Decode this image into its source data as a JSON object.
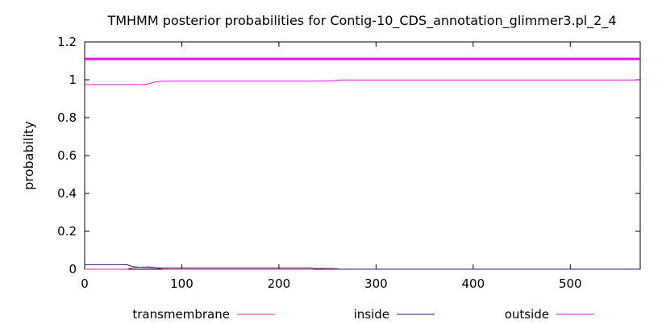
{
  "chart_data": {
    "type": "line",
    "title": "TMHMM posterior probabilities for Contig-10_CDS_annotation_glimmer3.pl_2_4",
    "xlabel": "",
    "ylabel": "probability",
    "xlim": [
      0,
      572
    ],
    "ylim": [
      0,
      1.2
    ],
    "x_ticks": [
      0,
      100,
      200,
      300,
      400,
      500
    ],
    "y_ticks": [
      0,
      0.2,
      0.4,
      0.6,
      0.8,
      1,
      1.2
    ],
    "y_tick_labels": [
      "0",
      "0.2",
      "0.4",
      "0.6",
      "0.8",
      "1",
      "1.2"
    ],
    "grid": false,
    "legend_position": "bottom",
    "series": [
      {
        "name": "transmembrane",
        "color": "#e0306a",
        "points": [
          [
            0,
            0.0
          ],
          [
            44,
            0.0
          ],
          [
            46,
            0.004
          ],
          [
            50,
            0.008
          ],
          [
            55,
            0.01
          ],
          [
            60,
            0.011
          ],
          [
            66,
            0.012
          ],
          [
            72,
            0.009
          ],
          [
            76,
            0.004
          ],
          [
            80,
            0.001
          ],
          [
            90,
            0.0
          ],
          [
            234,
            0.0
          ],
          [
            238,
            0.003
          ],
          [
            245,
            0.005
          ],
          [
            252,
            0.005
          ],
          [
            258,
            0.003
          ],
          [
            263,
            0.0
          ],
          [
            572,
            0.0
          ]
        ]
      },
      {
        "name": "inside",
        "color": "#1f1f8f",
        "points": [
          [
            0,
            0.024
          ],
          [
            40,
            0.024
          ],
          [
            44,
            0.023
          ],
          [
            48,
            0.016
          ],
          [
            52,
            0.012
          ],
          [
            58,
            0.01
          ],
          [
            66,
            0.009
          ],
          [
            75,
            0.007
          ],
          [
            85,
            0.006
          ],
          [
            150,
            0.006
          ],
          [
            230,
            0.006
          ],
          [
            235,
            0.005
          ],
          [
            240,
            0.002
          ],
          [
            245,
            0.001
          ],
          [
            250,
            0.0
          ],
          [
            572,
            0.0
          ]
        ]
      },
      {
        "name": "outside",
        "color": "#ee11ee",
        "points": [
          [
            0,
            0.975
          ],
          [
            60,
            0.975
          ],
          [
            64,
            0.977
          ],
          [
            68,
            0.982
          ],
          [
            72,
            0.988
          ],
          [
            78,
            0.992
          ],
          [
            90,
            0.993
          ],
          [
            234,
            0.993
          ],
          [
            240,
            0.994
          ],
          [
            250,
            0.994
          ],
          [
            258,
            0.996
          ],
          [
            264,
            0.999
          ],
          [
            570,
            0.999
          ],
          [
            572,
            1.0
          ]
        ]
      }
    ],
    "reference_line": {
      "y": 1.11,
      "color": "#ee11ee"
    }
  }
}
